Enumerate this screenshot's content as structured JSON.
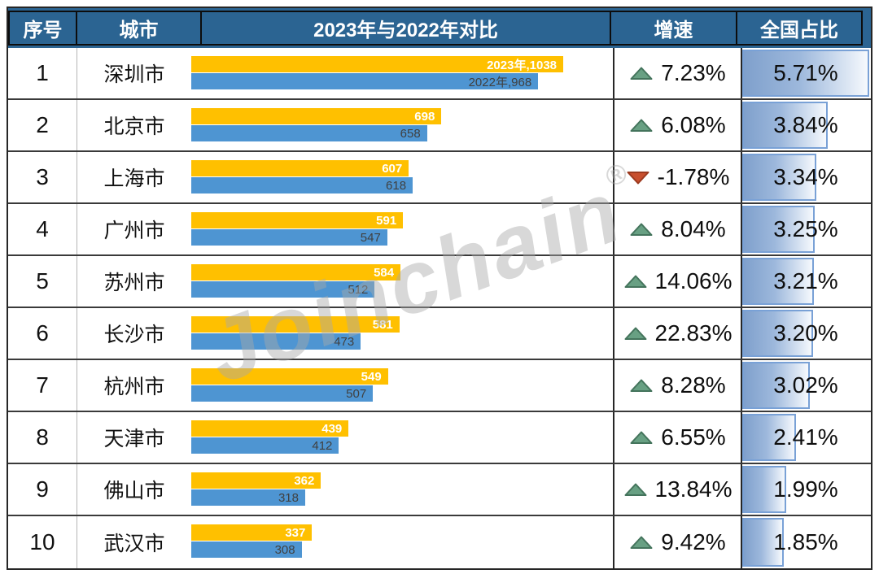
{
  "header": {
    "col_rank": "序号",
    "col_city": "城市",
    "col_compare": "2023年与2022年对比",
    "col_growth": "增速",
    "col_share": "全国占比"
  },
  "watermark": {
    "text": "Joinchain",
    "registered": "®"
  },
  "colors": {
    "header_bg": "#2B6492",
    "bar_2023": "#FFC000",
    "bar_2022": "#4E95D2",
    "trend_up": "#68A083",
    "trend_down": "#C84F2E",
    "share_databar": "#7FA0CC"
  },
  "chart_data": {
    "type": "bar",
    "title": "2023年与2022年对比",
    "series_labels": [
      "2023年",
      "2022年"
    ],
    "value_axis_max": 1038,
    "share_axis_max": 5.71,
    "legend_position": "none",
    "grid": "off",
    "rows": [
      {
        "rank": "1",
        "city": "深圳市",
        "v2023": 1038,
        "v2022": 968,
        "label_2023": "2023年,1038",
        "label_2022": "2022年,968",
        "trend": "up",
        "growth": "7.23%",
        "share": "5.71%",
        "share_value": 5.71
      },
      {
        "rank": "2",
        "city": "北京市",
        "v2023": 698,
        "v2022": 658,
        "label_2023": "698",
        "label_2022": "658",
        "trend": "up",
        "growth": "6.08%",
        "share": "3.84%",
        "share_value": 3.84
      },
      {
        "rank": "3",
        "city": "上海市",
        "v2023": 607,
        "v2022": 618,
        "label_2023": "607",
        "label_2022": "618",
        "trend": "down",
        "growth": "-1.78%",
        "share": "3.34%",
        "share_value": 3.34
      },
      {
        "rank": "4",
        "city": "广州市",
        "v2023": 591,
        "v2022": 547,
        "label_2023": "591",
        "label_2022": "547",
        "trend": "up",
        "growth": "8.04%",
        "share": "3.25%",
        "share_value": 3.25
      },
      {
        "rank": "5",
        "city": "苏州市",
        "v2023": 584,
        "v2022": 512,
        "label_2023": "584",
        "label_2022": "512",
        "trend": "up",
        "growth": "14.06%",
        "share": "3.21%",
        "share_value": 3.21
      },
      {
        "rank": "6",
        "city": "长沙市",
        "v2023": 581,
        "v2022": 473,
        "label_2023": "581",
        "label_2022": "473",
        "trend": "up",
        "growth": "22.83%",
        "share": "3.20%",
        "share_value": 3.2
      },
      {
        "rank": "7",
        "city": "杭州市",
        "v2023": 549,
        "v2022": 507,
        "label_2023": "549",
        "label_2022": "507",
        "trend": "up",
        "growth": "8.28%",
        "share": "3.02%",
        "share_value": 3.02
      },
      {
        "rank": "8",
        "city": "天津市",
        "v2023": 439,
        "v2022": 412,
        "label_2023": "439",
        "label_2022": "412",
        "trend": "up",
        "growth": "6.55%",
        "share": "2.41%",
        "share_value": 2.41
      },
      {
        "rank": "9",
        "city": "佛山市",
        "v2023": 362,
        "v2022": 318,
        "label_2023": "362",
        "label_2022": "318",
        "trend": "up",
        "growth": "13.84%",
        "share": "1.99%",
        "share_value": 1.99
      },
      {
        "rank": "10",
        "city": "武汉市",
        "v2023": 337,
        "v2022": 308,
        "label_2023": "337",
        "label_2022": "308",
        "trend": "up",
        "growth": "9.42%",
        "share": "1.85%",
        "share_value": 1.85
      }
    ]
  }
}
